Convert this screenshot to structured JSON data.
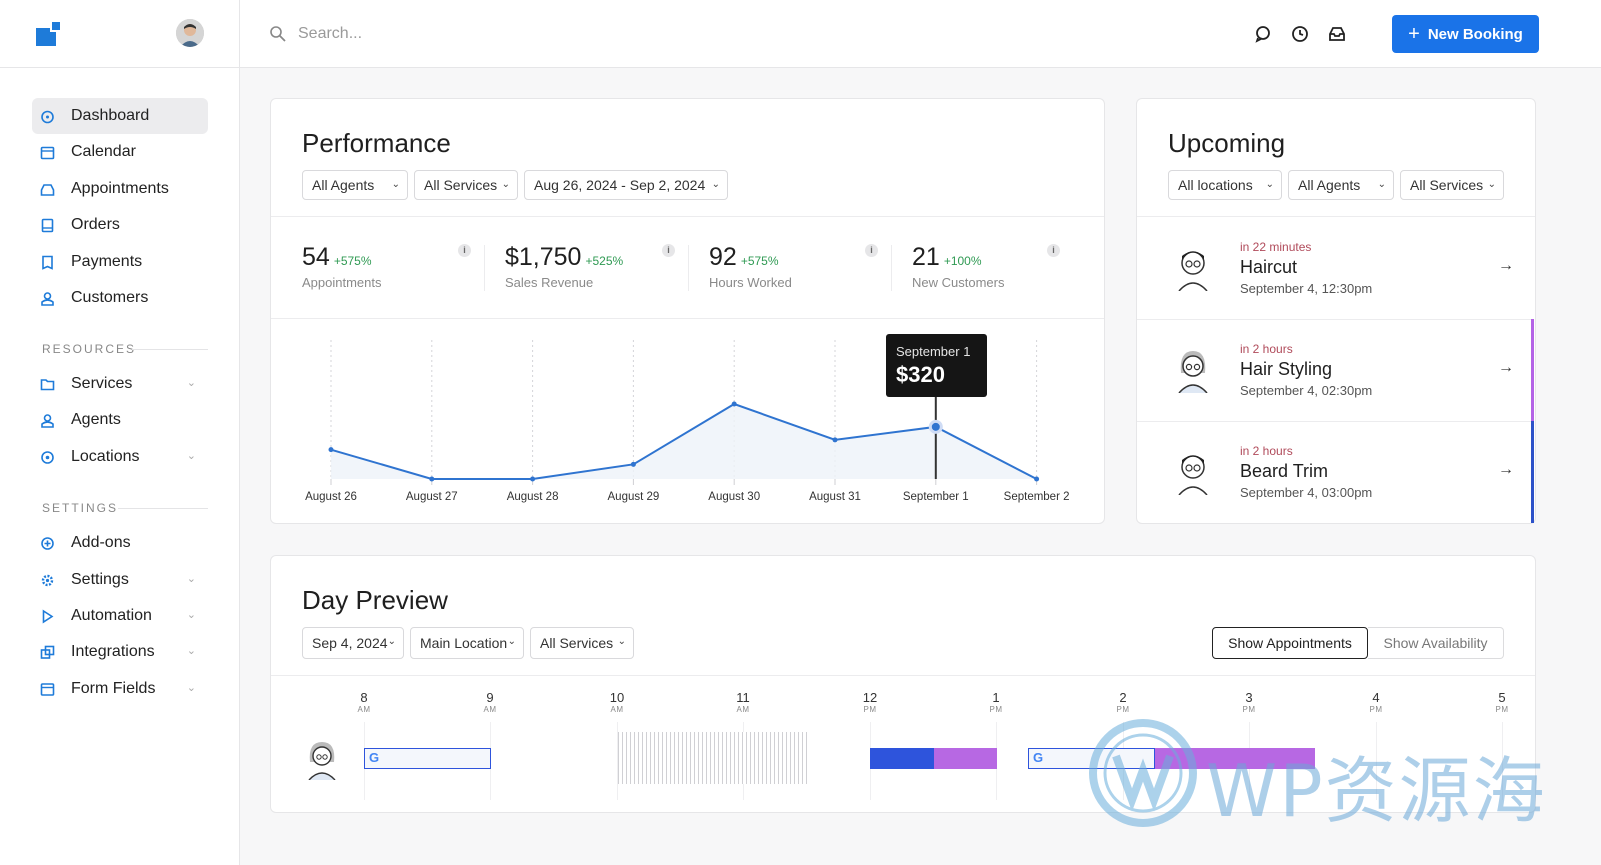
{
  "header": {
    "search_placeholder": "Search...",
    "new_booking_label": "New Booking"
  },
  "sidebar": {
    "items": [
      {
        "label": "Dashboard",
        "icon": "dashboard-icon"
      },
      {
        "label": "Calendar",
        "icon": "calendar-icon"
      },
      {
        "label": "Appointments",
        "icon": "inbox-icon"
      },
      {
        "label": "Orders",
        "icon": "orders-icon"
      },
      {
        "label": "Payments",
        "icon": "receipt-icon"
      },
      {
        "label": "Customers",
        "icon": "user-icon"
      }
    ],
    "resources_label": "RESOURCES",
    "resources": [
      {
        "label": "Services",
        "icon": "folder-icon"
      },
      {
        "label": "Agents",
        "icon": "user-icon"
      },
      {
        "label": "Locations",
        "icon": "pin-icon"
      }
    ],
    "settings_label": "SETTINGS",
    "settings": [
      {
        "label": "Add-ons",
        "icon": "plus-circle-icon"
      },
      {
        "label": "Settings",
        "icon": "gear-icon"
      },
      {
        "label": "Automation",
        "icon": "play-icon"
      },
      {
        "label": "Integrations",
        "icon": "integrations-icon"
      },
      {
        "label": "Form Fields",
        "icon": "form-icon"
      }
    ]
  },
  "performance": {
    "title": "Performance",
    "filters": {
      "agents": "All Agents",
      "services": "All Services",
      "dates": "Aug 26, 2024 - Sep 2, 2024"
    },
    "stats": [
      {
        "value": "54",
        "change": "+575%",
        "label": "Appointments"
      },
      {
        "value": "$1,750",
        "change": "+525%",
        "label": "Sales Revenue"
      },
      {
        "value": "92",
        "change": "+575%",
        "label": "Hours Worked"
      },
      {
        "value": "21",
        "change": "+100%",
        "label": "New Customers"
      }
    ],
    "info_glyph": "i",
    "tooltip": {
      "date": "September 1",
      "value": "$320"
    }
  },
  "chart_data": {
    "type": "area",
    "x": [
      "August 26",
      "August 27",
      "August 28",
      "August 29",
      "August 30",
      "August 31",
      "September 1",
      "September 2"
    ],
    "series": [
      {
        "values": [
          180,
          0,
          0,
          90,
          460,
          240,
          320,
          0
        ]
      }
    ],
    "ylim": [
      0,
      460
    ],
    "grid": "vertical dotted",
    "highlight_index": 6
  },
  "upcoming": {
    "title": "Upcoming",
    "filters": {
      "locations": "All locations",
      "agents": "All Agents",
      "services": "All Services"
    },
    "items": [
      {
        "when": "in 22 minutes",
        "service": "Haircut",
        "date": "September 4, 12:30pm",
        "bar_color": "#ffffff"
      },
      {
        "when": "in 2 hours",
        "service": "Hair Styling",
        "date": "September 4, 02:30pm",
        "bar_color": "#b463e6"
      },
      {
        "when": "in 2 hours",
        "service": "Beard Trim",
        "date": "September 4, 03:00pm",
        "bar_color": "#2d52c9"
      }
    ]
  },
  "day_preview": {
    "title": "Day Preview",
    "filters": {
      "date": "Sep 4, 2024",
      "location": "Main Location",
      "services": "All Services"
    },
    "show_appointments": "Show Appointments",
    "show_availability": "Show Availability",
    "hours": [
      {
        "h": "8",
        "ap": "AM"
      },
      {
        "h": "9",
        "ap": "AM"
      },
      {
        "h": "10",
        "ap": "AM"
      },
      {
        "h": "11",
        "ap": "AM"
      },
      {
        "h": "12",
        "ap": "PM"
      },
      {
        "h": "1",
        "ap": "PM"
      },
      {
        "h": "2",
        "ap": "PM"
      },
      {
        "h": "3",
        "ap": "PM"
      },
      {
        "h": "4",
        "ap": "PM"
      },
      {
        "h": "5",
        "ap": "PM"
      }
    ],
    "colors": {
      "blue": "#2e54dc",
      "purple": "#b768e3"
    }
  },
  "watermark": {
    "text": "WP资源海"
  }
}
